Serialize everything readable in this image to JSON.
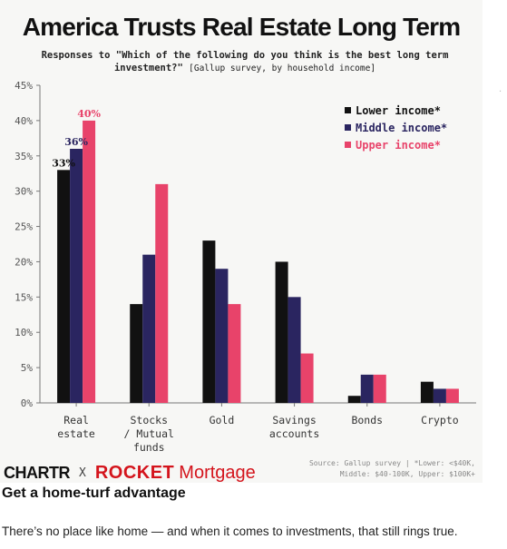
{
  "chart_data": {
    "type": "bar",
    "title": "America Trusts Real Estate Long Term",
    "subtitle_bold": "Responses to \"Which of the following do you think is the best long term investment?\"",
    "subtitle_note": "[Gallup survey, by household income]",
    "categories": [
      "Real estate",
      "Stocks / Mutual funds",
      "Gold",
      "Savings accounts",
      "Bonds",
      "Crypto"
    ],
    "category_lines": [
      [
        "Real",
        "estate"
      ],
      [
        "Stocks",
        "/ Mutual",
        "funds"
      ],
      [
        "Gold"
      ],
      [
        "Savings",
        "accounts"
      ],
      [
        "Bonds"
      ],
      [
        "Crypto"
      ]
    ],
    "series": [
      {
        "name": "Lower income*",
        "color": "#111111",
        "values": [
          33,
          14,
          23,
          20,
          1,
          3
        ]
      },
      {
        "name": "Middle income*",
        "color": "#2a2560",
        "values": [
          36,
          21,
          19,
          15,
          4,
          2
        ]
      },
      {
        "name": "Upper income*",
        "color": "#e8436a",
        "values": [
          40,
          31,
          14,
          7,
          4,
          2
        ]
      }
    ],
    "data_labels": [
      {
        "category": 0,
        "series": 0,
        "text": "33%"
      },
      {
        "category": 0,
        "series": 1,
        "text": "36%"
      },
      {
        "category": 0,
        "series": 2,
        "text": "40%"
      }
    ],
    "yticks": [
      "0%",
      "5%",
      "10%",
      "15%",
      "20%",
      "25%",
      "30%",
      "35%",
      "40%",
      "45%"
    ],
    "ylim": [
      0,
      45
    ],
    "grid": false,
    "legend_position": "top-right"
  },
  "branding": {
    "chartr": "CHARTR",
    "separator": "X",
    "rocket": "ROCKET",
    "mortgage": "Mortgage"
  },
  "source": {
    "line1": "Source: Gallup survey | *Lower: <$40K,",
    "line2": "Middle: $40-100K, Upper: $100K+"
  },
  "article": {
    "headline": "Get a home-turf advantage",
    "body": "There’s no place like home — and when it comes to investments, that still rings true."
  }
}
